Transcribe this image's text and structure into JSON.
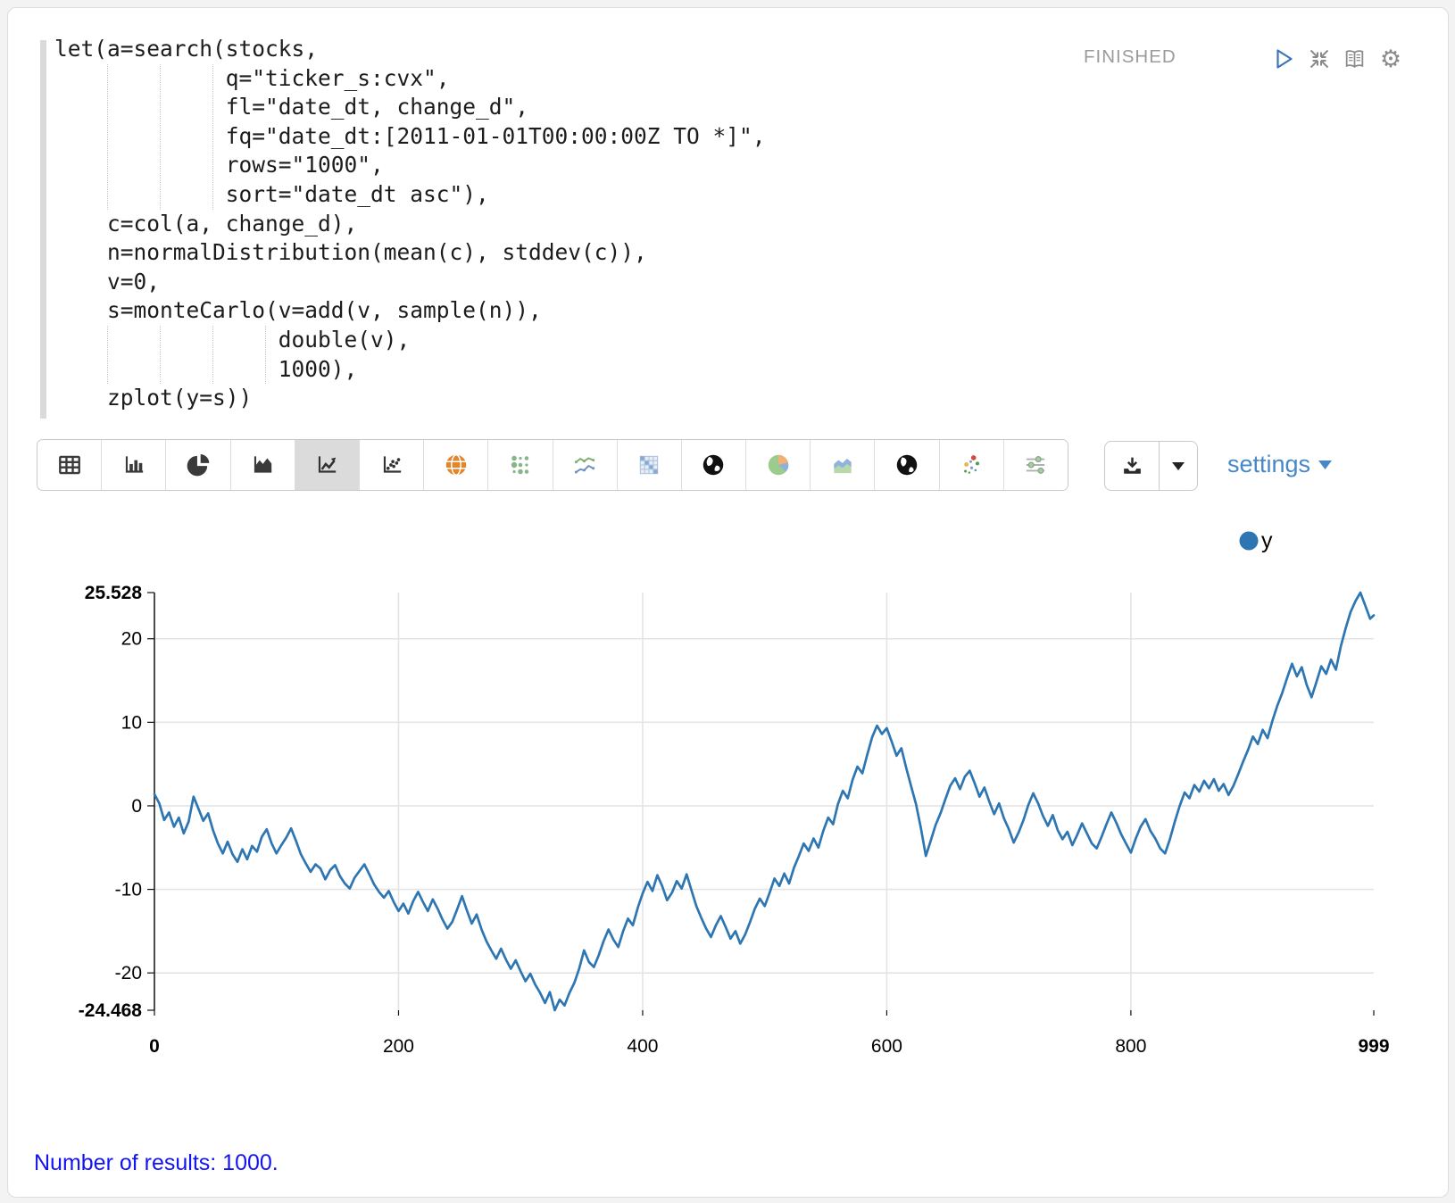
{
  "paragraph": {
    "code": "let(a=search(stocks,\n             q=\"ticker_s:cvx\",\n             fl=\"date_dt, change_d\",\n             fq=\"date_dt:[2011-01-01T00:00:00Z TO *]\",\n             rows=\"1000\",\n             sort=\"date_dt asc\"),\n    c=col(a, change_d),\n    n=normalDistribution(mean(c), stddev(c)),\n    v=0,\n    s=monteCarlo(v=add(v, sample(n)),\n                 double(v),\n                 1000),\n    zplot(y=s))",
    "status": "FINISHED",
    "control_icons": [
      "play-icon",
      "compress-icon",
      "book-icon",
      "gear-icon"
    ]
  },
  "toolbar": {
    "chart_types": [
      "table",
      "bar-chart",
      "pie-chart",
      "area-chart",
      "line-chart",
      "scatter-chart",
      "network-globe",
      "bubble-matrix",
      "spark-lines",
      "heatmap",
      "globe",
      "color-pie-chart",
      "color-area-chart",
      "globe-2",
      "color-scatter",
      "range-sliders"
    ],
    "selected": "line-chart",
    "settings_label": "settings"
  },
  "chart_data": {
    "type": "line",
    "xlim": [
      0,
      999
    ],
    "ylim": [
      -24.468,
      25.528
    ],
    "grid": true,
    "legend_position": "top-right",
    "xticks": [
      {
        "v": 0,
        "label": "0",
        "bold": true
      },
      {
        "v": 200,
        "label": "200"
      },
      {
        "v": 400,
        "label": "400"
      },
      {
        "v": 600,
        "label": "600"
      },
      {
        "v": 800,
        "label": "800"
      },
      {
        "v": 999,
        "label": "999",
        "bold": true
      }
    ],
    "yticks": [
      {
        "v": 25.528,
        "label": "25.528",
        "bold": true
      },
      {
        "v": 20,
        "label": "20"
      },
      {
        "v": 10,
        "label": "10"
      },
      {
        "v": 0,
        "label": "0"
      },
      {
        "v": -10,
        "label": "-10"
      },
      {
        "v": -20,
        "label": "-20"
      },
      {
        "v": -24.468,
        "label": "-24.468",
        "bold": true
      }
    ],
    "legend": [
      {
        "label": "y",
        "color": "#2e76b2"
      }
    ],
    "series": [
      {
        "name": "y",
        "color": "#2e76b2",
        "points": [
          [
            0,
            1.4
          ],
          [
            4,
            0.3
          ],
          [
            8,
            -1.7
          ],
          [
            12,
            -0.8
          ],
          [
            16,
            -2.5
          ],
          [
            20,
            -1.4
          ],
          [
            24,
            -3.3
          ],
          [
            28,
            -1.9
          ],
          [
            32,
            1.1
          ],
          [
            36,
            -0.3
          ],
          [
            40,
            -1.8
          ],
          [
            44,
            -0.9
          ],
          [
            48,
            -2.9
          ],
          [
            52,
            -4.5
          ],
          [
            56,
            -5.7
          ],
          [
            60,
            -4.3
          ],
          [
            64,
            -5.8
          ],
          [
            68,
            -6.7
          ],
          [
            72,
            -5.2
          ],
          [
            76,
            -6.4
          ],
          [
            80,
            -4.8
          ],
          [
            84,
            -5.5
          ],
          [
            88,
            -3.7
          ],
          [
            92,
            -2.8
          ],
          [
            96,
            -4.5
          ],
          [
            100,
            -5.7
          ],
          [
            104,
            -4.7
          ],
          [
            108,
            -3.8
          ],
          [
            112,
            -2.7
          ],
          [
            116,
            -4.2
          ],
          [
            120,
            -5.8
          ],
          [
            124,
            -6.9
          ],
          [
            128,
            -7.9
          ],
          [
            132,
            -7.0
          ],
          [
            136,
            -7.5
          ],
          [
            140,
            -8.8
          ],
          [
            144,
            -7.7
          ],
          [
            148,
            -7.1
          ],
          [
            152,
            -8.4
          ],
          [
            156,
            -9.3
          ],
          [
            160,
            -9.9
          ],
          [
            164,
            -8.6
          ],
          [
            168,
            -7.8
          ],
          [
            172,
            -7.0
          ],
          [
            176,
            -8.2
          ],
          [
            180,
            -9.4
          ],
          [
            184,
            -10.3
          ],
          [
            188,
            -11.0
          ],
          [
            192,
            -10.2
          ],
          [
            196,
            -11.5
          ],
          [
            200,
            -12.6
          ],
          [
            204,
            -11.7
          ],
          [
            208,
            -12.9
          ],
          [
            212,
            -11.4
          ],
          [
            216,
            -10.3
          ],
          [
            220,
            -11.5
          ],
          [
            224,
            -12.6
          ],
          [
            228,
            -11.2
          ],
          [
            232,
            -12.3
          ],
          [
            236,
            -13.6
          ],
          [
            240,
            -14.7
          ],
          [
            244,
            -13.9
          ],
          [
            248,
            -12.4
          ],
          [
            252,
            -10.8
          ],
          [
            256,
            -12.5
          ],
          [
            260,
            -14.1
          ],
          [
            264,
            -13.0
          ],
          [
            268,
            -14.8
          ],
          [
            272,
            -16.2
          ],
          [
            276,
            -17.3
          ],
          [
            280,
            -18.3
          ],
          [
            284,
            -17.1
          ],
          [
            288,
            -18.4
          ],
          [
            292,
            -19.5
          ],
          [
            296,
            -18.5
          ],
          [
            300,
            -19.8
          ],
          [
            304,
            -21.0
          ],
          [
            308,
            -20.1
          ],
          [
            312,
            -21.4
          ],
          [
            316,
            -22.4
          ],
          [
            320,
            -23.6
          ],
          [
            324,
            -22.3
          ],
          [
            328,
            -24.468
          ],
          [
            332,
            -23.2
          ],
          [
            336,
            -23.9
          ],
          [
            340,
            -22.4
          ],
          [
            344,
            -21.2
          ],
          [
            348,
            -19.5
          ],
          [
            352,
            -17.3
          ],
          [
            356,
            -18.7
          ],
          [
            360,
            -19.3
          ],
          [
            364,
            -17.9
          ],
          [
            368,
            -16.2
          ],
          [
            372,
            -14.8
          ],
          [
            376,
            -16.0
          ],
          [
            380,
            -16.9
          ],
          [
            384,
            -15.0
          ],
          [
            388,
            -13.5
          ],
          [
            392,
            -14.3
          ],
          [
            396,
            -12.2
          ],
          [
            400,
            -10.5
          ],
          [
            404,
            -9.1
          ],
          [
            408,
            -10.2
          ],
          [
            412,
            -8.3
          ],
          [
            416,
            -9.6
          ],
          [
            420,
            -11.3
          ],
          [
            424,
            -10.4
          ],
          [
            428,
            -9.0
          ],
          [
            432,
            -9.9
          ],
          [
            436,
            -8.2
          ],
          [
            440,
            -10.1
          ],
          [
            444,
            -12.0
          ],
          [
            448,
            -13.4
          ],
          [
            452,
            -14.7
          ],
          [
            456,
            -15.7
          ],
          [
            460,
            -14.3
          ],
          [
            464,
            -13.2
          ],
          [
            468,
            -14.5
          ],
          [
            472,
            -15.9
          ],
          [
            476,
            -15.0
          ],
          [
            480,
            -16.5
          ],
          [
            484,
            -15.4
          ],
          [
            488,
            -13.9
          ],
          [
            492,
            -12.3
          ],
          [
            496,
            -11.1
          ],
          [
            500,
            -12.0
          ],
          [
            504,
            -10.4
          ],
          [
            508,
            -8.7
          ],
          [
            512,
            -9.6
          ],
          [
            516,
            -8.1
          ],
          [
            520,
            -9.3
          ],
          [
            524,
            -7.4
          ],
          [
            528,
            -6.0
          ],
          [
            532,
            -4.5
          ],
          [
            536,
            -5.4
          ],
          [
            540,
            -3.9
          ],
          [
            544,
            -5.0
          ],
          [
            548,
            -3.0
          ],
          [
            552,
            -1.4
          ],
          [
            556,
            -2.2
          ],
          [
            560,
            0.2
          ],
          [
            564,
            1.8
          ],
          [
            568,
            0.9
          ],
          [
            572,
            3.1
          ],
          [
            576,
            4.7
          ],
          [
            580,
            3.9
          ],
          [
            584,
            6.1
          ],
          [
            588,
            8.2
          ],
          [
            592,
            9.6
          ],
          [
            596,
            8.6
          ],
          [
            600,
            9.3
          ],
          [
            604,
            7.7
          ],
          [
            608,
            6.0
          ],
          [
            612,
            6.9
          ],
          [
            616,
            4.5
          ],
          [
            620,
            2.3
          ],
          [
            624,
            0.2
          ],
          [
            628,
            -2.7
          ],
          [
            632,
            -6.0
          ],
          [
            636,
            -4.2
          ],
          [
            640,
            -2.3
          ],
          [
            644,
            -0.9
          ],
          [
            648,
            0.8
          ],
          [
            652,
            2.4
          ],
          [
            656,
            3.3
          ],
          [
            660,
            2.0
          ],
          [
            664,
            3.5
          ],
          [
            668,
            4.2
          ],
          [
            672,
            2.7
          ],
          [
            676,
            1.1
          ],
          [
            680,
            2.2
          ],
          [
            684,
            0.5
          ],
          [
            688,
            -1.0
          ],
          [
            692,
            0.3
          ],
          [
            696,
            -1.5
          ],
          [
            700,
            -2.8
          ],
          [
            704,
            -4.4
          ],
          [
            708,
            -3.2
          ],
          [
            712,
            -1.7
          ],
          [
            716,
            0.1
          ],
          [
            720,
            1.5
          ],
          [
            724,
            0.3
          ],
          [
            728,
            -1.2
          ],
          [
            732,
            -2.4
          ],
          [
            736,
            -1.1
          ],
          [
            740,
            -2.9
          ],
          [
            744,
            -4.0
          ],
          [
            748,
            -3.1
          ],
          [
            752,
            -4.7
          ],
          [
            756,
            -3.5
          ],
          [
            760,
            -2.1
          ],
          [
            764,
            -3.3
          ],
          [
            768,
            -4.5
          ],
          [
            772,
            -5.1
          ],
          [
            776,
            -3.7
          ],
          [
            780,
            -2.2
          ],
          [
            784,
            -0.8
          ],
          [
            788,
            -2.0
          ],
          [
            792,
            -3.4
          ],
          [
            796,
            -4.5
          ],
          [
            800,
            -5.6
          ],
          [
            804,
            -3.9
          ],
          [
            808,
            -2.5
          ],
          [
            812,
            -1.6
          ],
          [
            816,
            -3.0
          ],
          [
            820,
            -3.9
          ],
          [
            824,
            -5.1
          ],
          [
            828,
            -5.7
          ],
          [
            832,
            -4.0
          ],
          [
            836,
            -1.9
          ],
          [
            840,
            0.0
          ],
          [
            844,
            1.6
          ],
          [
            848,
            0.9
          ],
          [
            852,
            2.5
          ],
          [
            856,
            1.7
          ],
          [
            860,
            3.0
          ],
          [
            864,
            2.1
          ],
          [
            868,
            3.2
          ],
          [
            872,
            1.8
          ],
          [
            876,
            2.6
          ],
          [
            880,
            1.3
          ],
          [
            884,
            2.4
          ],
          [
            888,
            3.8
          ],
          [
            892,
            5.3
          ],
          [
            896,
            6.7
          ],
          [
            900,
            8.3
          ],
          [
            904,
            7.4
          ],
          [
            908,
            9.1
          ],
          [
            912,
            8.1
          ],
          [
            916,
            10.2
          ],
          [
            920,
            12.0
          ],
          [
            924,
            13.5
          ],
          [
            928,
            15.3
          ],
          [
            932,
            17.0
          ],
          [
            936,
            15.5
          ],
          [
            940,
            16.6
          ],
          [
            944,
            14.5
          ],
          [
            948,
            13.0
          ],
          [
            952,
            14.8
          ],
          [
            956,
            16.7
          ],
          [
            960,
            15.8
          ],
          [
            964,
            17.5
          ],
          [
            968,
            16.3
          ],
          [
            972,
            19.1
          ],
          [
            976,
            21.3
          ],
          [
            980,
            23.2
          ],
          [
            984,
            24.5
          ],
          [
            988,
            25.528
          ],
          [
            992,
            24.0
          ],
          [
            996,
            22.4
          ],
          [
            999,
            22.8
          ]
        ]
      }
    ]
  },
  "output": {
    "result_text": "Number of results: 1000."
  }
}
